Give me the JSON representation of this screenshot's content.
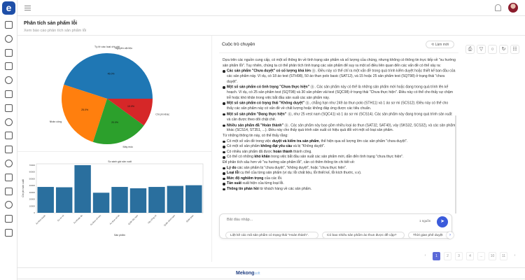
{
  "app": {
    "logo": "e",
    "brand_main": "Mekong",
    "brand_sub": "soft"
  },
  "sidebar": {
    "icons": [
      "settings-icon",
      "briefcase-icon",
      "chart-icon",
      "home-icon",
      "clipboard-icon",
      "bell-icon",
      "list-icon",
      "shield-icon",
      "user-switch-icon",
      "pie-icon",
      "checklist-icon",
      "layout-icon",
      "group-icon",
      "dashboard-icon",
      "report-icon",
      "trend-icon"
    ]
  },
  "header": {
    "title": "Phân tích sản phẩm lỗi",
    "subtitle": "Xem báo cáo phân tích sản phẩm lỗi"
  },
  "chart_data": [
    {
      "type": "pie",
      "title": "Tỷ lệ các loại chi phí",
      "labels": [
        "Nguyên vật liệu",
        "Nhân công",
        "Máy móc",
        "Chi phí khác"
      ],
      "values": [
        45.0,
        25.0,
        20.0,
        10.0
      ],
      "value_labels": [
        "45.0%",
        "25.0%",
        "20.0%",
        "10.0%"
      ],
      "colors": [
        "#1f77b4",
        "#ff7f0e",
        "#2ca02c",
        "#d62728"
      ]
    },
    {
      "type": "bar",
      "title": "So sánh giá sản xuất",
      "xlabel": "Sản phẩm",
      "ylabel": "Chi phí sản xuất",
      "categories": [
        "Áo thun basic",
        "Áo sơ mi",
        "Áo khoác dù",
        "Áo thun cổ tròn",
        "Áo thun cổ bẻ",
        "Quần tây nam",
        "Váy công sở",
        "Quần short nam",
        "Quần jean"
      ],
      "values": [
        38000,
        37500,
        70000,
        29500,
        38000,
        36000,
        38000,
        39500,
        40500
      ],
      "ylim": [
        0,
        72000
      ],
      "yticks": [
        0,
        10000,
        20000,
        30000,
        40000,
        50000,
        60000,
        70000
      ],
      "color": "#2a6f9e"
    }
  ],
  "chat": {
    "title": "Cuộc trò chuyện",
    "refresh_label": "Làm mới",
    "intro": "Dựa trên các nguồn cung cấp, có một số thông tin về tình trạng sản phẩm và số lượng của chúng, nhưng không có thông tin trực tiếp về \"xu hướng sản phẩm lỗi\". Tuy nhiên, chúng ta có thể phân tích tình trạng các sản phẩm để suy ra một số điều liên quan đến các vấn đề có thể xảy ra:",
    "points": [
      {
        "bold": "Các sản phẩm \"Chưa duyệt\" có số lượng khá lớn",
        "text": ". Điều này có thể chỉ ra một vấn đề trong quá trình kiểm duyệt hoặc thiết kế ban đầu của các sản phẩm này. Ví dụ, có 18 áo test (STH98), 50 áo thun polo basic (SAT12), và 15 hoặc 25 sản phẩm test (SQT98) ở trạng thái \"chưa duyệt\"."
      },
      {
        "bold": "Một số sản phẩm có tình trạng \"Chưa thực hiện\"",
        "text": ". Các sản phẩm này có thể là những sản phẩm mới hoặc đang trong quá trình lên kế hoạch. Ví dụ, có 25 sản phẩm test (SQT98) và 30 sản phẩm vải test (SQC98) ở trạng thái \"Chưa thực hiện\". Điều này có thể cho thấy sự chậm trễ hoặc khó khăn trong việc bắt đầu sản xuất các sản phẩm này."
      },
      {
        "bold": "Một số sản phẩm có trạng thái \"Không duyệt\"",
        "text": ", chẳng hạn như 249 áo thun polo (STH11) và 1 áo sơ mi (SCS12). Điều này có thể cho thấy các sản phẩm này có vấn đề về chất lượng hoặc không đáp ứng được các tiêu chuẩn."
      },
      {
        "bold": "Một số sản phẩm \"Đang thực hiện\"",
        "text": ", như 25 vest nam (SQC41) và 1 áo sơ mi (SCS14). Các sản phẩm này đang trong quá trình sản xuất và cần được theo dõi chặt chẽ."
      },
      {
        "bold": "Nhiều sản phẩm đã \"Hoàn thành\"",
        "text": ". Các sản phẩm này bao gồm nhiều loại áo thun (SAT32, SAT40), váy (SKS32, SCS32), và các sản phẩm khác (SCS14, ST351, ...). Điều này cho thấy quá trình sản xuất có hiệu quả đối với một số loại sản phẩm."
      }
    ],
    "mid": "Từ những thông tin này, có thể thấy rằng:",
    "findings": [
      {
        "pre": "Có một số vấn đề trong việc ",
        "bold": "duyệt và kiểm tra sản phẩm",
        "post": ", thể hiện qua số lượng lớn các sản phẩm \"chưa duyệt\"."
      },
      {
        "pre": "Có một số sản phẩm ",
        "bold": "không đạt yêu cầu",
        "post": " và bị \"Không duyệt\"."
      },
      {
        "pre": "Có nhiều sản phẩm đã được ",
        "bold": "hoàn thành",
        "post": " thành công."
      },
      {
        "pre": "Có thể có những ",
        "bold": "khó khăn",
        "post": " trong việc bắt đầu sản xuất các sản phẩm mới, dẫn đến tình trạng \"chưa thực hiện\"."
      }
    ],
    "more": "Để phân tích sâu hơn về \"xu hướng sản phẩm lỗi\", cần có thêm thông tin chi tiết về:",
    "needs": [
      {
        "bold": "Lý do",
        "post": " các sản phẩm bị \"chưa duyệt\", \"không duyệt\", hoặc \"chưa thực hiện\"."
      },
      {
        "bold": "Loại lỗi",
        "post": " cụ thể của từng sản phẩm (ví dụ: lỗi chất liệu, lỗi thiết kế, lỗi kích thước, v.v)."
      },
      {
        "bold": "Mức độ nghiêm trọng",
        "post": " của các lỗi."
      },
      {
        "bold": "Tần suất",
        "post": " xuất hiện của từng loại lỗi."
      },
      {
        "bold": "Thông tin phản hồi",
        "post": " từ khách hàng về các sản phẩm."
      }
    ],
    "input_placeholder": "Bắt đầu nhập...",
    "source_label": "1 nguồn",
    "suggestions": [
      "Liệt kê các mã sản phẩm có trạng thái \"Hoàn thành\".",
      "Có bao nhiêu sản phẩm áo thun được đề cập?",
      "Thời gian phê duyệt"
    ]
  },
  "pagination": {
    "pages": [
      "1",
      "2",
      "3",
      "4",
      "...",
      "10",
      "11"
    ],
    "current": "1",
    "prev": "‹",
    "next": "›"
  }
}
